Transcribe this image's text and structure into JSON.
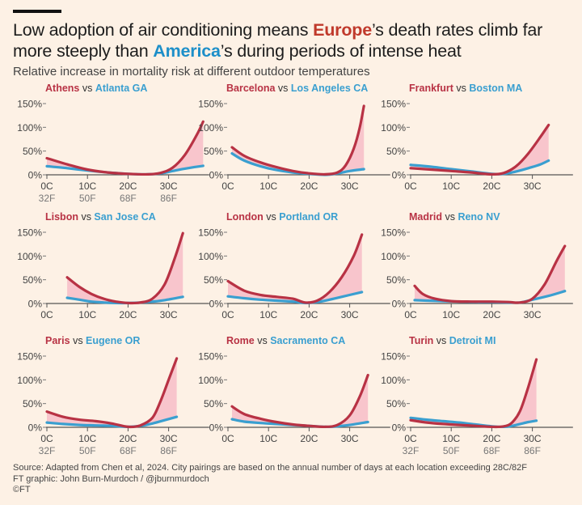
{
  "header": {
    "title_pre": "Low adoption of air conditioning means ",
    "title_eu": "Europe",
    "title_mid": "’s death rates climb far more steeply than ",
    "title_us": "America",
    "title_post": "’s during periods of intense heat",
    "subtitle": "Relative increase in mortality risk at different outdoor temperatures"
  },
  "footer": {
    "source": "Source: Adapted from Chen et al, 2024. City pairings are based on the annual number of days at each location exceeding 28C/82F",
    "credit": "FT graphic: John Burn-Murdoch / @jburnmurdoch",
    "copyright": "©FT"
  },
  "colors": {
    "europe": "#b83244",
    "america": "#3a9fd0",
    "fill": "#f7c0c9",
    "axis": "#555555"
  },
  "chart_data": {
    "type": "line",
    "xlabel": "",
    "ylabel": "",
    "ylim": [
      0,
      150
    ],
    "yticks": [
      "0%",
      "50%",
      "100%",
      "150%"
    ],
    "xticks_c": [
      "0C",
      "10C",
      "20C",
      "30C"
    ],
    "xticks_f": [
      "32F",
      "50F",
      "68F",
      "86F"
    ],
    "xlim": [
      -2,
      40
    ],
    "panels": [
      {
        "europe_city": "Athens",
        "vs": "vs",
        "us_city": "Atlanta GA",
        "europe": [
          [
            0,
            35
          ],
          [
            5,
            22
          ],
          [
            10,
            11
          ],
          [
            15,
            5
          ],
          [
            20,
            2
          ],
          [
            25,
            1
          ],
          [
            28,
            4
          ],
          [
            31,
            15
          ],
          [
            34,
            42
          ],
          [
            37,
            85
          ],
          [
            38.5,
            112
          ]
        ],
        "america": [
          [
            0,
            18
          ],
          [
            5,
            14
          ],
          [
            10,
            9
          ],
          [
            15,
            5
          ],
          [
            20,
            2
          ],
          [
            25,
            1
          ],
          [
            28,
            3
          ],
          [
            31,
            8
          ],
          [
            34,
            13
          ],
          [
            38.5,
            19
          ]
        ]
      },
      {
        "europe_city": "Barcelona",
        "vs": "vs",
        "us_city": "Los Angeles CA",
        "europe": [
          [
            1,
            58
          ],
          [
            4,
            40
          ],
          [
            8,
            26
          ],
          [
            12,
            16
          ],
          [
            16,
            8
          ],
          [
            20,
            3
          ],
          [
            24,
            1
          ],
          [
            27,
            5
          ],
          [
            29,
            20
          ],
          [
            31,
            55
          ],
          [
            32.5,
            100
          ],
          [
            33.5,
            145
          ]
        ],
        "america": [
          [
            1,
            45
          ],
          [
            4,
            30
          ],
          [
            8,
            18
          ],
          [
            12,
            10
          ],
          [
            16,
            5
          ],
          [
            20,
            2
          ],
          [
            24,
            0
          ],
          [
            27,
            3
          ],
          [
            30,
            8
          ],
          [
            33.5,
            12
          ]
        ]
      },
      {
        "europe_city": "Frankfurt",
        "vs": "vs",
        "us_city": "Boston MA",
        "europe": [
          [
            0,
            14
          ],
          [
            5,
            11
          ],
          [
            10,
            8
          ],
          [
            15,
            5
          ],
          [
            20,
            1
          ],
          [
            23,
            4
          ],
          [
            26,
            18
          ],
          [
            29,
            45
          ],
          [
            32,
            80
          ],
          [
            34,
            105
          ]
        ],
        "america": [
          [
            0,
            21
          ],
          [
            5,
            17
          ],
          [
            10,
            12
          ],
          [
            15,
            7
          ],
          [
            20,
            2
          ],
          [
            23,
            2
          ],
          [
            26,
            7
          ],
          [
            29,
            14
          ],
          [
            32,
            22
          ],
          [
            34,
            30
          ]
        ]
      },
      {
        "europe_city": "Lisbon",
        "vs": "vs",
        "us_city": "San Jose CA",
        "europe": [
          [
            5,
            55
          ],
          [
            8,
            35
          ],
          [
            11,
            20
          ],
          [
            14,
            10
          ],
          [
            17,
            4
          ],
          [
            20,
            1
          ],
          [
            23,
            2
          ],
          [
            26,
            10
          ],
          [
            29,
            40
          ],
          [
            31.5,
            95
          ],
          [
            33.5,
            148
          ]
        ],
        "america": [
          [
            5,
            12
          ],
          [
            8,
            8
          ],
          [
            11,
            4
          ],
          [
            14,
            2
          ],
          [
            17,
            1
          ],
          [
            20,
            1
          ],
          [
            23,
            2
          ],
          [
            26,
            4
          ],
          [
            29,
            7
          ],
          [
            33.5,
            14
          ]
        ]
      },
      {
        "europe_city": "London",
        "vs": "vs",
        "us_city": "Portland OR",
        "europe": [
          [
            0,
            47
          ],
          [
            4,
            27
          ],
          [
            8,
            18
          ],
          [
            12,
            14
          ],
          [
            16,
            10
          ],
          [
            19,
            2
          ],
          [
            22,
            6
          ],
          [
            25,
            24
          ],
          [
            28,
            55
          ],
          [
            31,
            100
          ],
          [
            33,
            145
          ]
        ],
        "america": [
          [
            0,
            15
          ],
          [
            4,
            11
          ],
          [
            8,
            8
          ],
          [
            12,
            6
          ],
          [
            16,
            4
          ],
          [
            19,
            1
          ],
          [
            22,
            3
          ],
          [
            25,
            8
          ],
          [
            28,
            14
          ],
          [
            33,
            24
          ]
        ]
      },
      {
        "europe_city": "Madrid",
        "vs": "vs",
        "us_city": "Reno NV",
        "europe": [
          [
            1,
            37
          ],
          [
            3,
            20
          ],
          [
            6,
            10
          ],
          [
            10,
            5
          ],
          [
            15,
            4
          ],
          [
            20,
            4
          ],
          [
            24,
            3
          ],
          [
            27,
            2
          ],
          [
            30,
            10
          ],
          [
            33,
            40
          ],
          [
            36,
            90
          ],
          [
            38,
            121
          ]
        ],
        "america": [
          [
            1,
            7
          ],
          [
            4,
            6
          ],
          [
            8,
            5
          ],
          [
            12,
            4
          ],
          [
            16,
            3
          ],
          [
            20,
            3
          ],
          [
            24,
            2
          ],
          [
            27,
            2
          ],
          [
            30,
            8
          ],
          [
            34,
            16
          ],
          [
            38,
            26
          ]
        ]
      },
      {
        "europe_city": "Paris",
        "vs": "vs",
        "us_city": "Eugene OR",
        "europe": [
          [
            0,
            33
          ],
          [
            4,
            22
          ],
          [
            8,
            16
          ],
          [
            12,
            13
          ],
          [
            16,
            8
          ],
          [
            20,
            1
          ],
          [
            23,
            4
          ],
          [
            26,
            20
          ],
          [
            28,
            55
          ],
          [
            30,
            100
          ],
          [
            32,
            145
          ]
        ],
        "america": [
          [
            0,
            10
          ],
          [
            4,
            7
          ],
          [
            8,
            5
          ],
          [
            12,
            4
          ],
          [
            16,
            3
          ],
          [
            20,
            1
          ],
          [
            23,
            3
          ],
          [
            26,
            8
          ],
          [
            29,
            15
          ],
          [
            32,
            22
          ]
        ]
      },
      {
        "europe_city": "Rome",
        "vs": "vs",
        "us_city": "Sacramento CA",
        "europe": [
          [
            1,
            44
          ],
          [
            4,
            28
          ],
          [
            8,
            18
          ],
          [
            12,
            11
          ],
          [
            16,
            6
          ],
          [
            20,
            3
          ],
          [
            24,
            1
          ],
          [
            27,
            5
          ],
          [
            30,
            25
          ],
          [
            32.5,
            65
          ],
          [
            34.5,
            110
          ]
        ],
        "america": [
          [
            1,
            17
          ],
          [
            4,
            12
          ],
          [
            8,
            9
          ],
          [
            12,
            7
          ],
          [
            16,
            5
          ],
          [
            20,
            3
          ],
          [
            24,
            1
          ],
          [
            27,
            2
          ],
          [
            30,
            5
          ],
          [
            34.5,
            11
          ]
        ]
      },
      {
        "europe_city": "Turin",
        "vs": "vs",
        "us_city": "Detroit MI",
        "europe": [
          [
            0,
            15
          ],
          [
            4,
            10
          ],
          [
            8,
            7
          ],
          [
            12,
            5
          ],
          [
            16,
            3
          ],
          [
            20,
            1
          ],
          [
            23,
            2
          ],
          [
            25,
            10
          ],
          [
            27,
            35
          ],
          [
            29,
            85
          ],
          [
            31,
            143
          ]
        ],
        "america": [
          [
            0,
            20
          ],
          [
            4,
            16
          ],
          [
            8,
            13
          ],
          [
            12,
            10
          ],
          [
            16,
            6
          ],
          [
            20,
            2
          ],
          [
            23,
            1
          ],
          [
            25,
            3
          ],
          [
            27,
            7
          ],
          [
            29,
            11
          ],
          [
            31,
            14
          ]
        ]
      }
    ]
  }
}
